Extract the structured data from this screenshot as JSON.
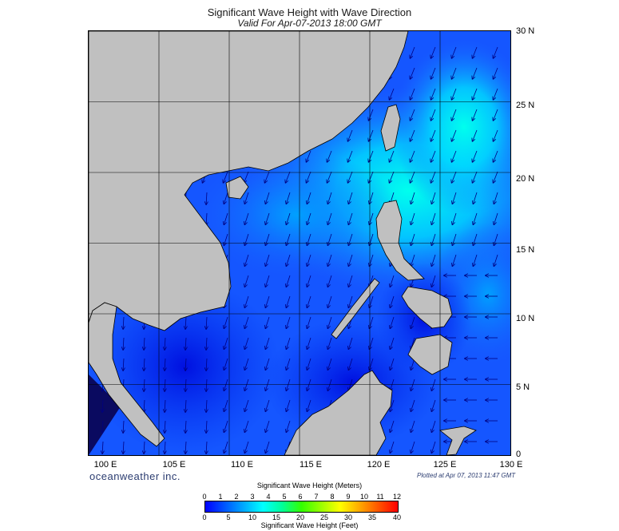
{
  "title": "Significant Wave Height with Wave Direction",
  "subtitle": "Valid For Apr-07-2013 18:00 GMT",
  "latitude_labels": [
    "30 N",
    "25 N",
    "20 N",
    "15 N",
    "10 N",
    "5 N",
    "0"
  ],
  "longitude_labels": [
    "100 E",
    "105 E",
    "110 E",
    "115 E",
    "120 E",
    "125 E",
    "130 E"
  ],
  "brand": "oceanweather inc.",
  "plotted": "Plotted at Apr 07, 2013 11:47 GMT",
  "colorbar": {
    "title_meters": "Significant Wave Height (Meters)",
    "title_feet": "Significant Wave Height (Feet)",
    "meter_ticks": [
      "0",
      "1",
      "2",
      "3",
      "4",
      "5",
      "6",
      "7",
      "8",
      "9",
      "10",
      "11",
      "12"
    ],
    "feet_ticks": [
      "0",
      "5",
      "10",
      "15",
      "20",
      "25",
      "30",
      "35",
      "40"
    ]
  },
  "colors": {
    "land": "#c0c0c0",
    "ocean_low": "#0000ff",
    "ocean_mid": "#00aaff",
    "ocean_high": "#00ffee",
    "arrow": "#000080"
  }
}
